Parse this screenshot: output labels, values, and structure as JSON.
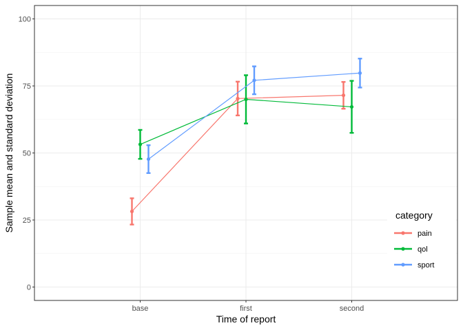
{
  "chart_data": {
    "type": "line",
    "xlabel": "Time of report",
    "ylabel": "Sample mean and standard deviation",
    "categories": [
      "base",
      "first",
      "second"
    ],
    "ylim": [
      -5,
      105
    ],
    "yticks": [
      0,
      25,
      50,
      75,
      100
    ],
    "grid": true,
    "legend": {
      "title": "category",
      "placement": "right-bottom"
    },
    "series": [
      {
        "name": "pain",
        "color": "#F8766D",
        "values": [
          28.2,
          70.3,
          71.5
        ],
        "lower": [
          23.3,
          64.0,
          66.5
        ],
        "upper": [
          33.1,
          76.6,
          76.5
        ]
      },
      {
        "name": "qol",
        "color": "#00BA38",
        "values": [
          53.2,
          70.0,
          67.2
        ],
        "lower": [
          47.8,
          61.0,
          57.5
        ],
        "upper": [
          58.6,
          79.0,
          76.9
        ]
      },
      {
        "name": "sport",
        "color": "#619CFF",
        "values": [
          47.7,
          77.1,
          79.8
        ],
        "lower": [
          42.5,
          71.9,
          74.4
        ],
        "upper": [
          52.9,
          82.3,
          85.2
        ]
      }
    ]
  }
}
